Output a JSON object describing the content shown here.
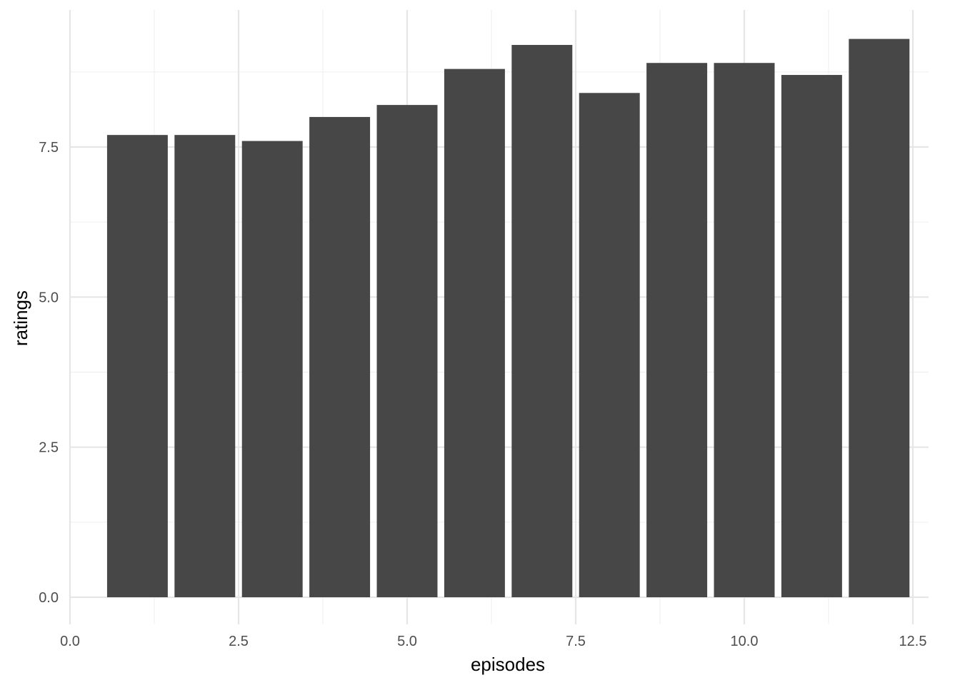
{
  "chart_data": {
    "type": "bar",
    "x": [
      1,
      2,
      3,
      4,
      5,
      6,
      7,
      8,
      9,
      10,
      11,
      12
    ],
    "values": [
      7.7,
      7.7,
      7.6,
      8.0,
      8.2,
      8.8,
      9.2,
      8.4,
      8.9,
      8.9,
      8.7,
      9.3
    ],
    "xlabel": "episodes",
    "ylabel": "ratings",
    "xlim": [
      0,
      12.5
    ],
    "ylim": [
      0,
      9.3
    ],
    "x_ticks": [
      "0.0",
      "2.5",
      "5.0",
      "7.5",
      "10.0",
      "12.5"
    ],
    "y_ticks": [
      "0.0",
      "2.5",
      "5.0",
      "7.5"
    ],
    "grid": true,
    "bar_color": "#474747",
    "grid_color": "#e6e6e6",
    "background": "#ffffff"
  }
}
